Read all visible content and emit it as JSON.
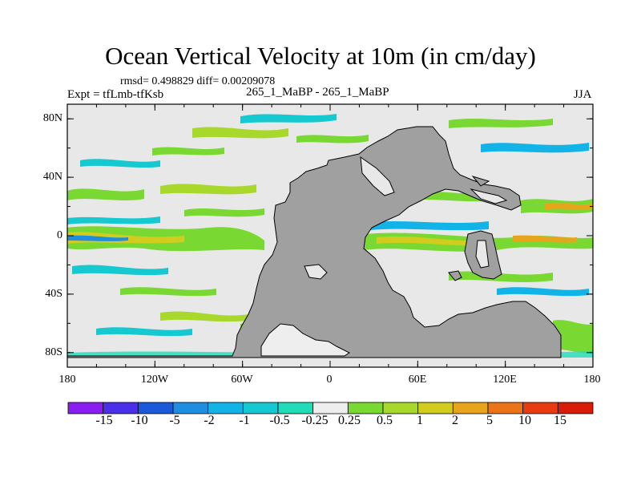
{
  "figure": {
    "title": "Ocean Vertical Velocity at 10m (in cm/day)",
    "stats": "rmsd= 0.498829 diff= 0.00209078",
    "left_label": "Expt = tfLmb-tfKsb",
    "center_label": "265_1_MaBP - 265_1_MaBP",
    "right_label": "JJA"
  },
  "axes": {
    "lat_ticks": [
      "80N",
      "40N",
      "0",
      "40S",
      "80S"
    ],
    "lon_ticks": [
      "180",
      "120W",
      "60W",
      "0",
      "60E",
      "120E",
      "180"
    ]
  },
  "colorbar": {
    "labels": [
      "-15",
      "-10",
      "-5",
      "-2",
      "-1",
      "-0.5",
      "-0.25",
      "0.25",
      "0.5",
      "1",
      "2",
      "5",
      "10",
      "15"
    ],
    "colors": [
      "#8a1ef0",
      "#4a30e8",
      "#1a5ad8",
      "#1f8ee0",
      "#12b4e8",
      "#16c8d0",
      "#20dcb8",
      "#eeeeee",
      "#7ad832",
      "#a8d82c",
      "#d2cc1e",
      "#e8a41c",
      "#ec7418",
      "#e83c10",
      "#d81c08"
    ]
  },
  "colors": {
    "ocean": "#e8e8e8",
    "land": "#a0a0a0"
  }
}
